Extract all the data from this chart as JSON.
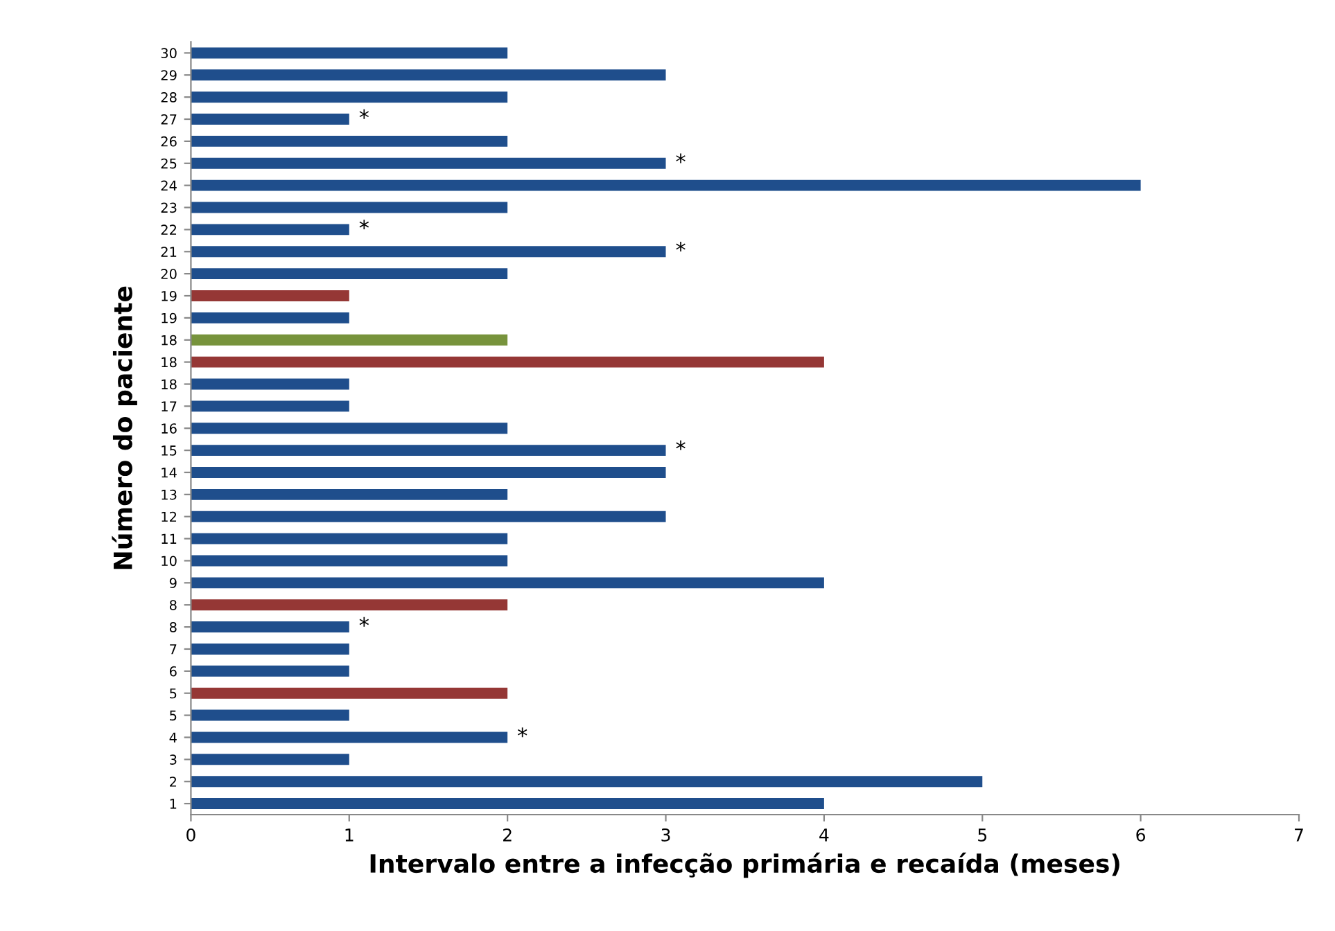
{
  "chart_data": {
    "type": "bar",
    "orientation": "horizontal",
    "xlabel": "Intervalo entre a infecção primária e recaída (meses)",
    "ylabel": "Número do paciente",
    "categories": [
      "30",
      "29",
      "28",
      "27",
      "26",
      "25",
      "24",
      "23",
      "22",
      "21",
      "20",
      "19",
      "19",
      "18",
      "18",
      "18",
      "17",
      "16",
      "15",
      "14",
      "13",
      "12",
      "11",
      "10",
      "9",
      "8",
      "8",
      "7",
      "6",
      "5",
      "5",
      "4",
      "3",
      "2",
      "1"
    ],
    "values": [
      2,
      3,
      2,
      1,
      2,
      3,
      6,
      2,
      1,
      3,
      2,
      1,
      1,
      2,
      4,
      1,
      1,
      2,
      3,
      3,
      2,
      3,
      2,
      2,
      4,
      2,
      1,
      1,
      1,
      2,
      1,
      2,
      1,
      5,
      4
    ],
    "colors": [
      "#1f4e8c",
      "#1f4e8c",
      "#1f4e8c",
      "#1f4e8c",
      "#1f4e8c",
      "#1f4e8c",
      "#1f4e8c",
      "#1f4e8c",
      "#1f4e8c",
      "#1f4e8c",
      "#1f4e8c",
      "#953735",
      "#1f4e8c",
      "#77933c",
      "#953735",
      "#1f4e8c",
      "#1f4e8c",
      "#1f4e8c",
      "#1f4e8c",
      "#1f4e8c",
      "#1f4e8c",
      "#1f4e8c",
      "#1f4e8c",
      "#1f4e8c",
      "#1f4e8c",
      "#953735",
      "#1f4e8c",
      "#1f4e8c",
      "#1f4e8c",
      "#953735",
      "#1f4e8c",
      "#1f4e8c",
      "#1f4e8c",
      "#1f4e8c",
      "#1f4e8c"
    ],
    "value_labels": [
      null,
      null,
      null,
      "*",
      null,
      "*",
      null,
      null,
      "*",
      "*",
      null,
      null,
      null,
      null,
      null,
      null,
      null,
      null,
      "*",
      null,
      null,
      null,
      null,
      null,
      null,
      null,
      "*",
      null,
      null,
      null,
      null,
      "*",
      null,
      null,
      null
    ],
    "xlim": [
      0,
      7
    ],
    "xticks": [
      0,
      1,
      2,
      3,
      4,
      5,
      6,
      7
    ],
    "grid": false,
    "legend": false
  }
}
